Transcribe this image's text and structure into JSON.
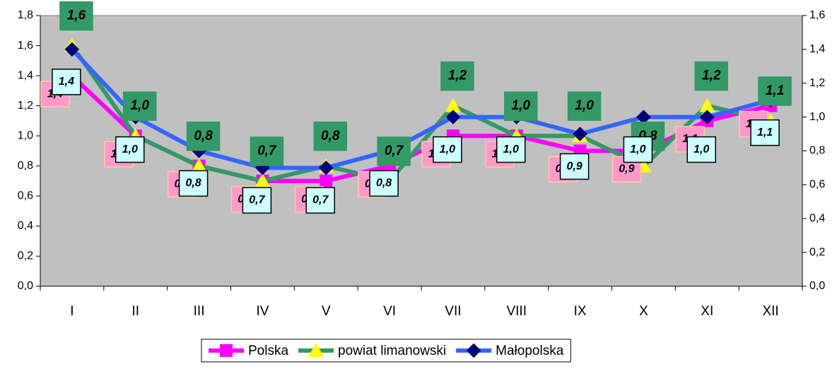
{
  "chart_data": {
    "type": "line",
    "categories": [
      "I",
      "II",
      "III",
      "IV",
      "V",
      "VI",
      "VII",
      "VIII",
      "IX",
      "X",
      "XI",
      "XII"
    ],
    "ylim": [
      0,
      1.8
    ],
    "yticks": [
      {
        "value": 0,
        "label": "0,0"
      },
      {
        "value": 0.2,
        "label": "0,2"
      },
      {
        "value": 0.4,
        "label": "0,4"
      },
      {
        "value": 0.6,
        "label": "0,6"
      },
      {
        "value": 0.8,
        "label": "0,8"
      },
      {
        "value": 1.0,
        "label": "1,0"
      },
      {
        "value": 1.2,
        "label": "1,2"
      },
      {
        "value": 1.4,
        "label": "1,4"
      },
      {
        "value": 1.6,
        "label": "1,6"
      },
      {
        "value": 1.8,
        "label": "1,8"
      }
    ],
    "y2lim": [
      0,
      1.6
    ],
    "y2ticks": [
      {
        "value": 0,
        "label": "0,0"
      },
      {
        "value": 0.2,
        "label": "0,2"
      },
      {
        "value": 0.4,
        "label": "0,4"
      },
      {
        "value": 0.6,
        "label": "0,6"
      },
      {
        "value": 0.8,
        "label": "0,8"
      },
      {
        "value": 1.0,
        "label": "1,0"
      },
      {
        "value": 1.2,
        "label": "1,2"
      },
      {
        "value": 1.4,
        "label": "1,4"
      },
      {
        "value": 1.6,
        "label": "1,6"
      }
    ],
    "plot_background": "#c0c0c0",
    "legend": "bottom",
    "series": [
      {
        "name": "Polska",
        "color": "#ff00ff",
        "marker": "square",
        "marker_color": "#ff00ff",
        "values": [
          1.4,
          1.0,
          0.8,
          0.7,
          0.7,
          0.8,
          1.0,
          1.0,
          0.9,
          0.9,
          1.1,
          1.2
        ],
        "value_labels": [
          "1,4",
          "1,0",
          "0,8",
          "0,7",
          "0,7",
          "0,8",
          "1,0",
          "1,0",
          "0,9",
          "0,9",
          "1,1",
          "1,2"
        ]
      },
      {
        "name": "powiat limanowski",
        "color": "#339966",
        "marker": "triangle",
        "marker_color": "#ffff00",
        "values": [
          1.6,
          1.0,
          0.8,
          0.7,
          0.8,
          0.7,
          1.2,
          1.0,
          1.0,
          0.8,
          1.2,
          1.1
        ],
        "value_labels": [
          "1,6",
          "1,0",
          "0,8",
          "0,7",
          "0,8",
          "0,7",
          "1,2",
          "1,0",
          "1,0",
          "0,8",
          "1,2",
          "1,1"
        ]
      },
      {
        "name": "Małopolska",
        "color": "#3366ff",
        "marker": "diamond",
        "marker_color": "#000080",
        "axis": "y2",
        "values": [
          1.4,
          1.0,
          0.8,
          0.7,
          0.7,
          0.8,
          1.0,
          1.0,
          0.9,
          1.0,
          1.0,
          1.1
        ],
        "value_labels": [
          "1,4",
          "1,0",
          "0,8",
          "0,7",
          "0,7",
          "0,8",
          "1,0",
          "1,0",
          "0,9",
          "1,0",
          "1,0",
          "1,1"
        ]
      }
    ]
  }
}
